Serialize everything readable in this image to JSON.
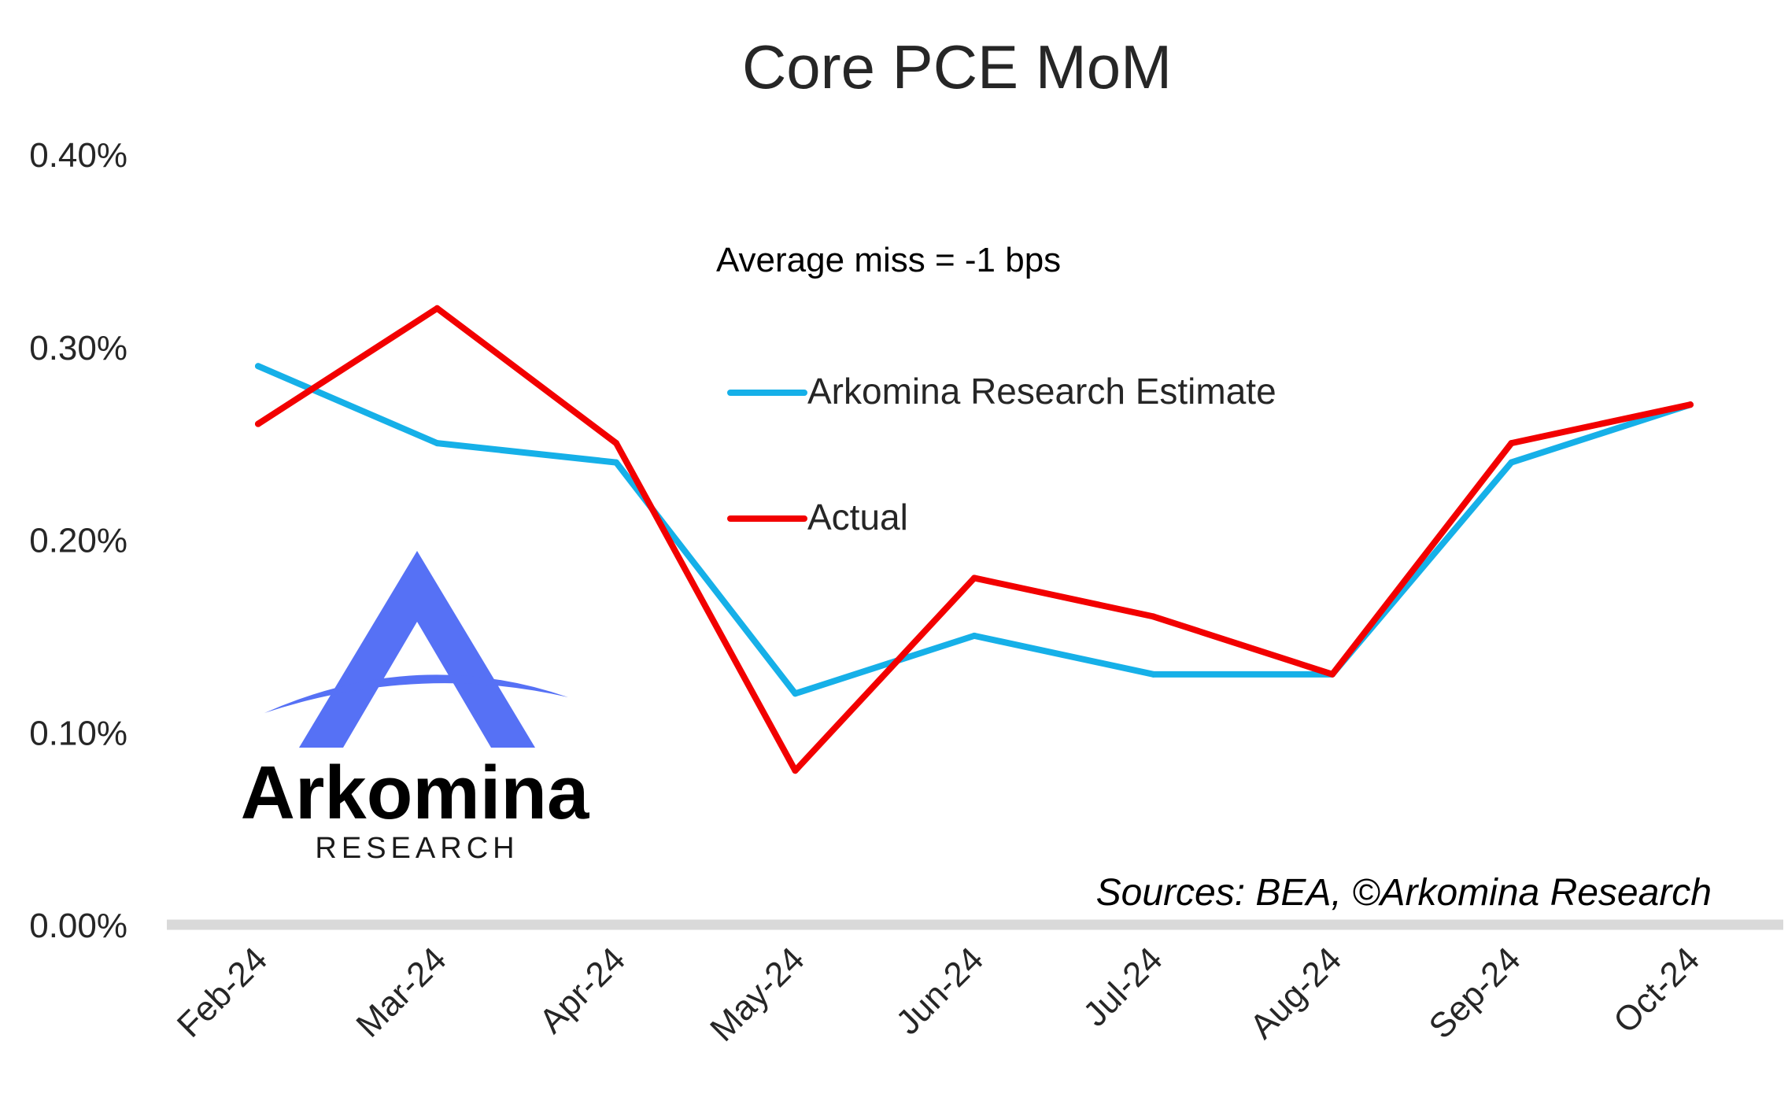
{
  "chart_data": {
    "type": "line",
    "title": "Core PCE MoM",
    "categories": [
      "Feb-24",
      "Mar-24",
      "Apr-24",
      "May-24",
      "Jun-24",
      "Jul-24",
      "Aug-24",
      "Sep-24",
      "Oct-24"
    ],
    "series": [
      {
        "name": "Arkomina Research Estimate",
        "color": "#16B0E8",
        "values": [
          0.29,
          0.25,
          0.24,
          0.12,
          0.15,
          0.13,
          0.13,
          0.24,
          0.27
        ]
      },
      {
        "name": "Actual",
        "color": "#F20000",
        "values": [
          0.26,
          0.32,
          0.25,
          0.08,
          0.18,
          0.16,
          0.13,
          0.25,
          0.27
        ]
      }
    ],
    "ylim": [
      0,
      0.4
    ],
    "yticks": [
      0,
      0.1,
      0.2,
      0.3,
      0.4
    ],
    "ytick_labels": [
      "0.00%",
      "0.10%",
      "0.20%",
      "0.30%",
      "0.40%"
    ],
    "annotation": "Average miss = -1 bps",
    "source": "Sources: BEA, ©Arkomina Research",
    "legend_position": "center",
    "grid": false
  },
  "logo": {
    "name": "Arkomina",
    "subtitle": "RESEARCH",
    "color": "#5671F5"
  },
  "colors": {
    "axis": "#D9D9D9",
    "text": "#262626"
  }
}
